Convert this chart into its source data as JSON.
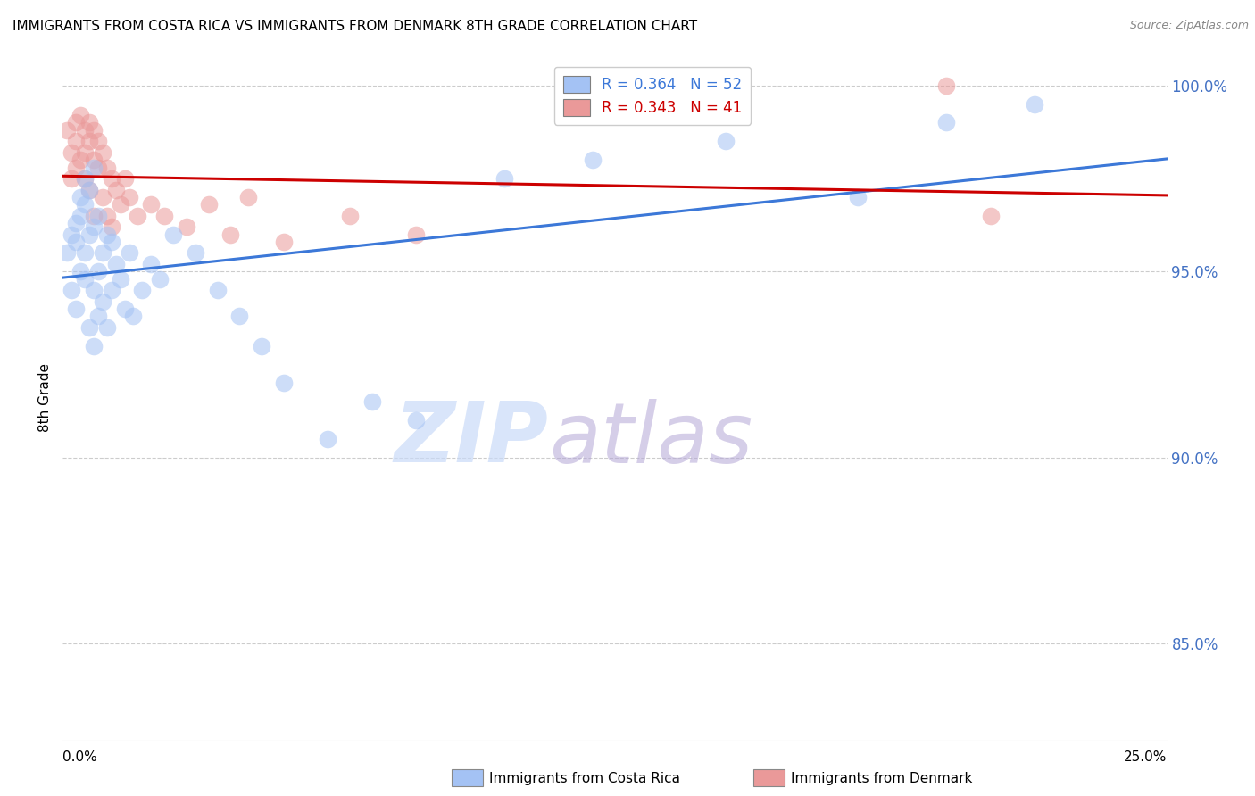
{
  "title": "IMMIGRANTS FROM COSTA RICA VS IMMIGRANTS FROM DENMARK 8TH GRADE CORRELATION CHART",
  "source": "Source: ZipAtlas.com",
  "ylabel": "8th Grade",
  "ytick_labels": [
    "85.0%",
    "90.0%",
    "95.0%",
    "100.0%"
  ],
  "ytick_values": [
    0.85,
    0.9,
    0.95,
    1.0
  ],
  "xlim": [
    0.0,
    0.25
  ],
  "ylim": [
    0.824,
    1.008
  ],
  "legend_blue_label": "R = 0.364   N = 52",
  "legend_pink_label": "R = 0.343   N = 41",
  "blue_color": "#a4c2f4",
  "pink_color": "#ea9999",
  "blue_line_color": "#3c78d8",
  "pink_line_color": "#cc0000",
  "watermark_zip": "ZIP",
  "watermark_atlas": "atlas",
  "watermark_zip_color": "#c9daf8",
  "watermark_atlas_color": "#b4a7d6",
  "background_color": "#ffffff",
  "costa_rica_x": [
    0.001,
    0.002,
    0.002,
    0.003,
    0.003,
    0.003,
    0.004,
    0.004,
    0.004,
    0.005,
    0.005,
    0.005,
    0.005,
    0.006,
    0.006,
    0.006,
    0.007,
    0.007,
    0.007,
    0.007,
    0.008,
    0.008,
    0.008,
    0.009,
    0.009,
    0.01,
    0.01,
    0.011,
    0.011,
    0.012,
    0.013,
    0.014,
    0.015,
    0.016,
    0.018,
    0.02,
    0.022,
    0.025,
    0.03,
    0.035,
    0.04,
    0.045,
    0.05,
    0.06,
    0.07,
    0.08,
    0.1,
    0.12,
    0.15,
    0.18,
    0.2,
    0.22
  ],
  "costa_rica_y": [
    0.955,
    0.96,
    0.945,
    0.958,
    0.963,
    0.94,
    0.97,
    0.965,
    0.95,
    0.968,
    0.975,
    0.955,
    0.948,
    0.972,
    0.96,
    0.935,
    0.978,
    0.962,
    0.945,
    0.93,
    0.965,
    0.95,
    0.938,
    0.955,
    0.942,
    0.96,
    0.935,
    0.958,
    0.945,
    0.952,
    0.948,
    0.94,
    0.955,
    0.938,
    0.945,
    0.952,
    0.948,
    0.96,
    0.955,
    0.945,
    0.938,
    0.93,
    0.92,
    0.905,
    0.915,
    0.91,
    0.975,
    0.98,
    0.985,
    0.97,
    0.99,
    0.995
  ],
  "denmark_x": [
    0.001,
    0.002,
    0.002,
    0.003,
    0.003,
    0.003,
    0.004,
    0.004,
    0.005,
    0.005,
    0.005,
    0.006,
    0.006,
    0.006,
    0.007,
    0.007,
    0.007,
    0.008,
    0.008,
    0.009,
    0.009,
    0.01,
    0.01,
    0.011,
    0.011,
    0.012,
    0.013,
    0.014,
    0.015,
    0.017,
    0.02,
    0.023,
    0.028,
    0.033,
    0.038,
    0.042,
    0.05,
    0.065,
    0.08,
    0.2,
    0.21
  ],
  "denmark_y": [
    0.988,
    0.982,
    0.975,
    0.99,
    0.985,
    0.978,
    0.992,
    0.98,
    0.988,
    0.982,
    0.975,
    0.99,
    0.985,
    0.972,
    0.988,
    0.98,
    0.965,
    0.985,
    0.978,
    0.982,
    0.97,
    0.978,
    0.965,
    0.975,
    0.962,
    0.972,
    0.968,
    0.975,
    0.97,
    0.965,
    0.968,
    0.965,
    0.962,
    0.968,
    0.96,
    0.97,
    0.958,
    0.965,
    0.96,
    1.0,
    0.965
  ]
}
